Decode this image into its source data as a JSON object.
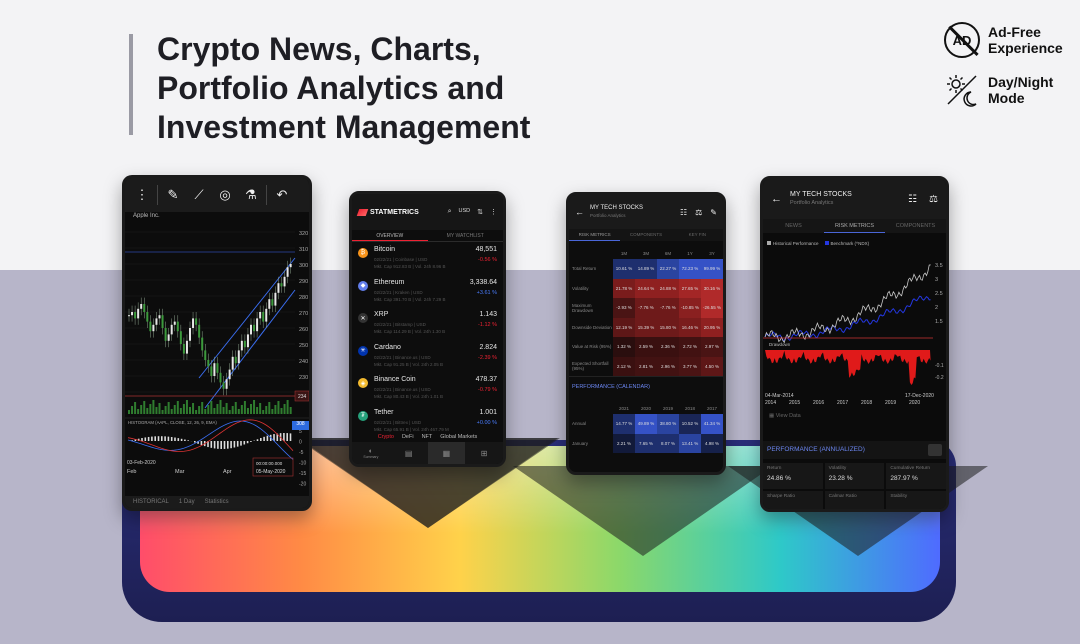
{
  "headline": "Crypto News, Charts,\nPortfolio Analytics and\nInvestment Management",
  "features": [
    {
      "icon": "ad-free-icon",
      "label": "Ad-Free\nExperience",
      "icon_text": "AD"
    },
    {
      "icon": "day-night-icon",
      "label": "Day/Night\nMode"
    }
  ],
  "phone_chart": {
    "toolbar_icons": [
      "more-icon",
      "pencil-icon",
      "line-tool-icon",
      "spiral-icon",
      "flask-icon",
      "undo-icon"
    ],
    "symbol": "Apple Inc.",
    "y_ticks": [
      "320",
      "310",
      "300",
      "290",
      "280",
      "270",
      "260",
      "250",
      "240",
      "230",
      "220"
    ],
    "highlight_price": "308",
    "price_234": "234",
    "indicator_label": "HISTOGRAM (AAPL, CLOSE, 12, 26, 9, EMA)",
    "osc_ticks": [
      "5",
      "0",
      "-5",
      "-10",
      "-15",
      "-20"
    ],
    "start_date": "03-Feb-2020",
    "end_time": "00:00:00.000",
    "end_date": "05-May-2020",
    "months": [
      "Feb",
      "Mar",
      "Apr"
    ],
    "status": [
      "HISTORICAL",
      "1 Day",
      "Statistics"
    ]
  },
  "phone_crypto": {
    "brand": "STATMETRICS",
    "currency": "USD",
    "tabs": [
      "OVERVIEW",
      "MY WATCHLIST"
    ],
    "coins": [
      {
        "name": "Bitcoin",
        "price": "48,551",
        "change": "-0.56 %",
        "dir": "down",
        "sub1": "02/22/21 | Coinbase | USD",
        "sub2": "Mkt. Cap 912.83 B | Vol. 24h 8.96 B",
        "color": "#f7931a",
        "glyph": "₿"
      },
      {
        "name": "Ethereum",
        "price": "3,338.64",
        "change": "+3.61 %",
        "dir": "up",
        "sub1": "02/22/21 | Kraken | USD",
        "sub2": "Mkt. Cap 391.70 B | Vol. 24h 7.29 B",
        "color": "#627eea",
        "glyph": "◆"
      },
      {
        "name": "XRP",
        "price": "1.143",
        "change": "-1.12 %",
        "dir": "down",
        "sub1": "02/22/21 | Bitstamp | USD",
        "sub2": "Mkt. Cap 114.29 B | Vol. 24h 1.30 B",
        "color": "#333",
        "glyph": "✕"
      },
      {
        "name": "Cardano",
        "price": "2.824",
        "change": "-2.39 %",
        "dir": "down",
        "sub1": "02/22/21 | Binance.us | USD",
        "sub2": "Mkt. Cap 91.25 B | Vol. 24h 2.05 B",
        "color": "#0033ad",
        "glyph": "✳"
      },
      {
        "name": "Binance Coin",
        "price": "478.37",
        "change": "-0.79 %",
        "dir": "down",
        "sub1": "02/22/21 | Binance.us | USD",
        "sub2": "Mkt. Cap 80.43 B | Vol. 24h 1.01 B",
        "color": "#f3ba2f",
        "glyph": "◈"
      },
      {
        "name": "Tether",
        "price": "1.001",
        "change": "+0.00 %",
        "dir": "up",
        "sub1": "02/22/21 | Bittrex | USD",
        "sub2": "Mkt. Cap 65.91 B | Vol. 24h 467.79 M",
        "color": "#26a17b",
        "glyph": "₮"
      }
    ],
    "filters": [
      "Crypto",
      "DeFi",
      "NFT",
      "Global Markets"
    ],
    "nav": [
      "home-icon",
      "news-icon",
      "ticker-icon",
      "grid-icon"
    ],
    "nav_label": "Summary"
  },
  "phone_risk": {
    "title": "MY TECH STOCKS",
    "subtitle": "Portfolio Analytics",
    "tabs": [
      "RISK METRICS",
      "COMPONENTS",
      "KEY FIN"
    ],
    "periods": [
      "1M",
      "3M",
      "6M",
      "1Y",
      "3Y"
    ],
    "rows": [
      {
        "label": "Total Return",
        "values": [
          "10.61 %",
          "14.89 %",
          "22.27 %",
          "72.23 %",
          "99.99 %"
        ],
        "colors": [
          "#1e2f6e",
          "#1e2f6e",
          "#2a44a0",
          "#3552c6",
          "#3552c6"
        ]
      },
      {
        "label": "Volatility",
        "values": [
          "21.78 %",
          "24.64 %",
          "24.88 %",
          "27.65 %",
          "30.16 %"
        ],
        "colors": [
          "#7a1c1c",
          "#8f2020",
          "#8f2020",
          "#a32626",
          "#b02a2a"
        ]
      },
      {
        "label": "Maximum Drawdown",
        "values": [
          "-2.93 %",
          "-7.76 %",
          "-7.76 %",
          "-10.85 %",
          "-26.55 %"
        ],
        "colors": [
          "#4a1414",
          "#6e1a1a",
          "#6e1a1a",
          "#8a2020",
          "#b02a2a"
        ]
      },
      {
        "label": "Downside Deviation",
        "values": [
          "12.19 %",
          "15.39 %",
          "15.80 %",
          "16.46 %",
          "20.95 %"
        ],
        "colors": [
          "#5e1717",
          "#6e1a1a",
          "#6e1a1a",
          "#7a1c1c",
          "#8f2020"
        ]
      },
      {
        "label": "Value at Risk (95%)",
        "values": [
          "1.32 %",
          "2.59 %",
          "2.36 %",
          "2.72 %",
          "2.97 %"
        ],
        "colors": [
          "#2a0e0e",
          "#3a1010",
          "#3a1010",
          "#421212",
          "#4a1414"
        ]
      },
      {
        "label": "Expected Shortfall (95%)",
        "values": [
          "2.12 %",
          "2.81 %",
          "2.96 %",
          "3.77 %",
          "4.50 %"
        ],
        "colors": [
          "#3a1010",
          "#421212",
          "#421212",
          "#4a1414",
          "#5e1717"
        ]
      }
    ],
    "section": "PERFORMANCE (CALENDAR)",
    "years": [
      "2021",
      "2020",
      "2019",
      "2018",
      "2017"
    ],
    "cal_rows": [
      {
        "label": "Annual",
        "values": [
          "14.77 %",
          "49.89 %",
          "38.80 %",
          "10.52 %",
          "41.34 %"
        ],
        "colors": [
          "#1e2f6e",
          "#3552c6",
          "#2a44a0",
          "#1a2656",
          "#3552c6"
        ]
      },
      {
        "label": "January",
        "values": [
          "2.21 %",
          "7.65 %",
          "8.07 %",
          "13.41 %",
          "4.98 %"
        ],
        "colors": [
          "#121a3a",
          "#1e2f6e",
          "#1e2f6e",
          "#2a44a0",
          "#16214a"
        ]
      }
    ]
  },
  "phone_portfolio": {
    "title": "MY TECH STOCKS",
    "subtitle": "Portfolio Analytics",
    "tabs": [
      "NEWS",
      "RISK METRICS",
      "COMPONENTS"
    ],
    "legend": [
      "Historical Performance",
      "Benchmark (^NDX)"
    ],
    "right_ticks": [
      "3.5",
      "3",
      "2.5",
      "2",
      "1.5"
    ],
    "drawdown_label": "Drawdown",
    "dd_ticks": [
      "-0.1",
      "-0.2"
    ],
    "start_date": "04-Mar-2014",
    "end_date": "17-Dec-2020",
    "years": [
      "2014",
      "2015",
      "2016",
      "2017",
      "2018",
      "2019",
      "2020"
    ],
    "view_data": "View Data",
    "perf_title": "PERFORMANCE (ANNUALIZED)",
    "stats": [
      {
        "k": "Return",
        "v": "24.86 %"
      },
      {
        "k": "Volatility",
        "v": "23.28 %"
      },
      {
        "k": "Cumulative Return",
        "v": "287.97 %"
      },
      {
        "k": "Sharpe Ratio",
        "v": ""
      },
      {
        "k": "Calmar Ratio",
        "v": ""
      },
      {
        "k": "Stability",
        "v": ""
      }
    ]
  }
}
